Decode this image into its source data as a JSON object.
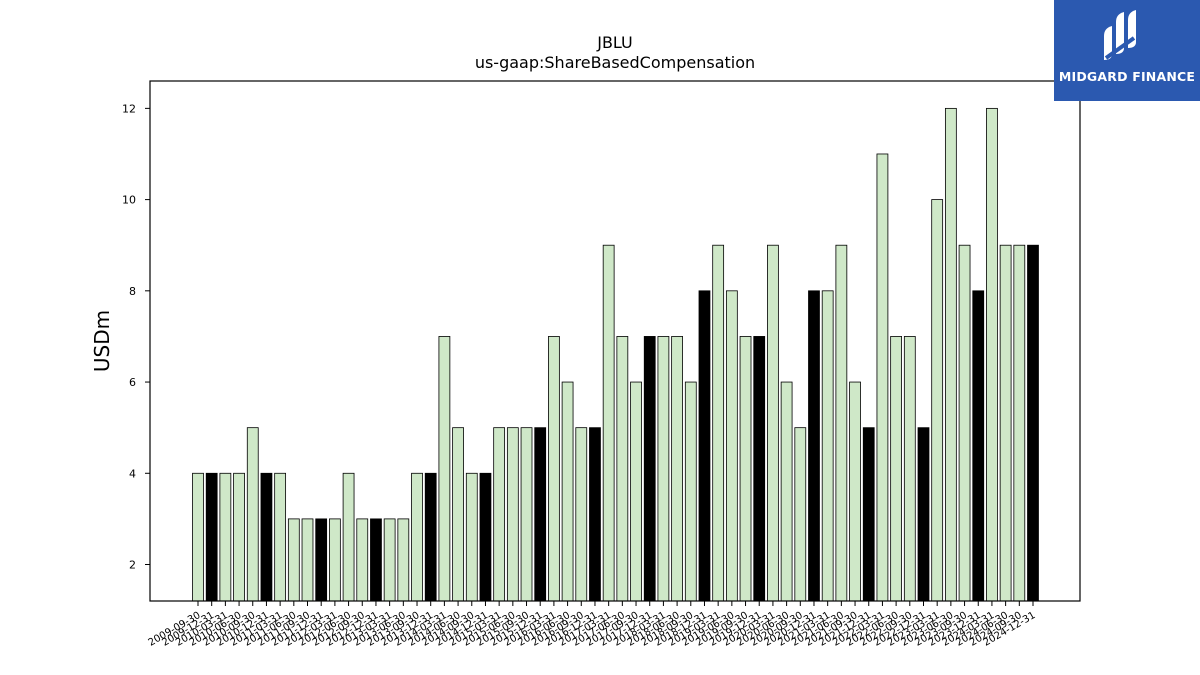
{
  "chart_data": {
    "type": "bar",
    "title": "JBLU",
    "subtitle": "us-gaap:ShareBasedCompensation",
    "xlabel": "",
    "ylabel": "USDm",
    "ylim": [
      1.2,
      12.6
    ],
    "yticks": [
      2,
      4,
      6,
      8,
      10,
      12
    ],
    "grid": false,
    "colors": {
      "quarter": "#cfe8c8",
      "annual": "#000000",
      "edge": "#000000"
    },
    "categories": [
      "2009-09-30",
      "2009-12-31",
      "2010-03-31",
      "2010-06-30",
      "2010-09-30",
      "2010-12-31",
      "2011-03-31",
      "2011-06-30",
      "2011-09-30",
      "2011-12-31",
      "2012-03-31",
      "2012-06-30",
      "2012-09-30",
      "2012-12-31",
      "2013-03-31",
      "2013-06-30",
      "2013-09-30",
      "2013-12-31",
      "2014-03-31",
      "2014-06-30",
      "2014-09-30",
      "2014-12-31",
      "2015-03-31",
      "2015-06-30",
      "2015-09-30",
      "2015-12-31",
      "2016-03-31",
      "2016-06-30",
      "2016-09-30",
      "2016-12-31",
      "2017-03-31",
      "2017-06-30",
      "2017-09-30",
      "2017-12-31",
      "2018-03-31",
      "2018-06-30",
      "2018-09-30",
      "2018-12-31",
      "2019-03-31",
      "2019-06-30",
      "2019-09-30",
      "2019-12-31",
      "2020-03-31",
      "2020-06-30",
      "2020-09-30",
      "2020-12-31",
      "2021-03-31",
      "2021-06-30",
      "2021-09-30",
      "2021-12-31",
      "2022-03-31",
      "2022-06-30",
      "2022-09-30",
      "2022-12-31",
      "2023-03-31",
      "2023-06-30",
      "2023-09-30",
      "2023-12-31",
      "2024-03-31",
      "2024-06-30",
      "2024-09-30",
      "2024-12-31"
    ],
    "values": [
      4,
      4,
      4,
      4,
      5,
      4,
      4,
      3,
      3,
      3,
      3,
      4,
      3,
      3,
      3,
      3,
      4,
      4,
      7,
      5,
      4,
      4,
      5,
      5,
      5,
      5,
      7,
      6,
      5,
      5,
      9,
      7,
      6,
      7,
      7,
      7,
      6,
      8,
      9,
      8,
      7,
      7,
      9,
      6,
      5,
      8,
      8,
      9,
      6,
      5,
      11,
      7,
      7,
      5,
      10,
      12,
      9,
      8,
      12,
      9,
      9,
      9
    ],
    "annual": [
      false,
      true,
      false,
      false,
      false,
      true,
      false,
      false,
      false,
      true,
      false,
      false,
      false,
      true,
      false,
      false,
      false,
      true,
      false,
      false,
      false,
      true,
      false,
      false,
      false,
      true,
      false,
      false,
      false,
      true,
      false,
      false,
      false,
      true,
      false,
      false,
      false,
      true,
      false,
      false,
      false,
      true,
      false,
      false,
      false,
      true,
      false,
      false,
      false,
      true,
      false,
      false,
      false,
      true,
      false,
      false,
      false,
      true,
      false,
      false,
      false,
      true
    ]
  },
  "logo": {
    "text": "MIDGARD FINANCE",
    "color": "#2b59b0"
  }
}
